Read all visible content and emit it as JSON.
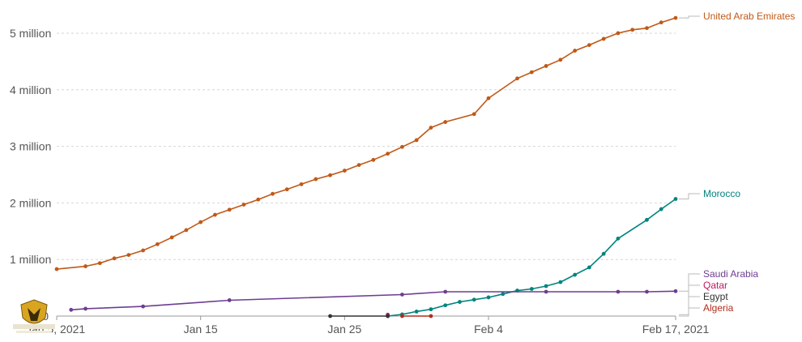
{
  "chart_data": {
    "type": "line",
    "x_axis": {
      "ticks": [
        {
          "date": "2021-01-05",
          "label": "Jan 5, 2021"
        },
        {
          "date": "2021-01-15",
          "label": "Jan 15"
        },
        {
          "date": "2021-01-25",
          "label": "Jan 25"
        },
        {
          "date": "2021-02-04",
          "label": "Feb 4"
        },
        {
          "date": "2021-02-17",
          "label": "Feb 17, 2021"
        }
      ],
      "range": [
        "2021-01-05",
        "2021-02-17"
      ]
    },
    "y_axis": {
      "ticks": [
        {
          "value": 0,
          "label": "0"
        },
        {
          "value": 1000000,
          "label": "1 million"
        },
        {
          "value": 2000000,
          "label": "2 million"
        },
        {
          "value": 3000000,
          "label": "3 million"
        },
        {
          "value": 4000000,
          "label": "4 million"
        },
        {
          "value": 5000000,
          "label": "5 million"
        }
      ],
      "range": [
        0,
        5300000
      ],
      "grid": "dashed"
    },
    "series": [
      {
        "name": "United Arab Emirates",
        "color": "#c05917",
        "points": [
          [
            "2021-01-05",
            830000
          ],
          [
            "2021-01-07",
            880000
          ],
          [
            "2021-01-08",
            935000
          ],
          [
            "2021-01-09",
            1020000
          ],
          [
            "2021-01-10",
            1080000
          ],
          [
            "2021-01-11",
            1160000
          ],
          [
            "2021-01-12",
            1270000
          ],
          [
            "2021-01-13",
            1390000
          ],
          [
            "2021-01-14",
            1520000
          ],
          [
            "2021-01-15",
            1660000
          ],
          [
            "2021-01-16",
            1790000
          ],
          [
            "2021-01-17",
            1880000
          ],
          [
            "2021-01-18",
            1970000
          ],
          [
            "2021-01-19",
            2060000
          ],
          [
            "2021-01-20",
            2160000
          ],
          [
            "2021-01-21",
            2240000
          ],
          [
            "2021-01-22",
            2330000
          ],
          [
            "2021-01-23",
            2420000
          ],
          [
            "2021-01-24",
            2490000
          ],
          [
            "2021-01-25",
            2570000
          ],
          [
            "2021-01-26",
            2670000
          ],
          [
            "2021-01-27",
            2760000
          ],
          [
            "2021-01-28",
            2870000
          ],
          [
            "2021-01-29",
            2990000
          ],
          [
            "2021-01-30",
            3110000
          ],
          [
            "2021-01-31",
            3330000
          ],
          [
            "2021-02-01",
            3430000
          ],
          [
            "2021-02-03",
            3570000
          ],
          [
            "2021-02-04",
            3850000
          ],
          [
            "2021-02-06",
            4200000
          ],
          [
            "2021-02-07",
            4310000
          ],
          [
            "2021-02-08",
            4420000
          ],
          [
            "2021-02-09",
            4530000
          ],
          [
            "2021-02-10",
            4690000
          ],
          [
            "2021-02-11",
            4790000
          ],
          [
            "2021-02-12",
            4900000
          ],
          [
            "2021-02-13",
            5000000
          ],
          [
            "2021-02-14",
            5060000
          ],
          [
            "2021-02-15",
            5090000
          ],
          [
            "2021-02-16",
            5190000
          ],
          [
            "2021-02-17",
            5270000
          ]
        ]
      },
      {
        "name": "Morocco",
        "color": "#00847e",
        "points": [
          [
            "2021-01-28",
            0
          ],
          [
            "2021-01-29",
            30000
          ],
          [
            "2021-01-30",
            80000
          ],
          [
            "2021-01-31",
            120000
          ],
          [
            "2021-02-01",
            190000
          ],
          [
            "2021-02-02",
            250000
          ],
          [
            "2021-02-03",
            290000
          ],
          [
            "2021-02-04",
            330000
          ],
          [
            "2021-02-05",
            390000
          ],
          [
            "2021-02-06",
            450000
          ],
          [
            "2021-02-07",
            480000
          ],
          [
            "2021-02-08",
            530000
          ],
          [
            "2021-02-09",
            600000
          ],
          [
            "2021-02-10",
            730000
          ],
          [
            "2021-02-11",
            860000
          ],
          [
            "2021-02-12",
            1100000
          ],
          [
            "2021-02-13",
            1370000
          ],
          [
            "2021-02-15",
            1700000
          ],
          [
            "2021-02-16",
            1890000
          ],
          [
            "2021-02-17",
            2070000
          ]
        ]
      },
      {
        "name": "Saudi Arabia",
        "color": "#6d3e91",
        "points": [
          [
            "2021-01-06",
            110000
          ],
          [
            "2021-01-07",
            130000
          ],
          [
            "2021-01-11",
            170000
          ],
          [
            "2021-01-17",
            280000
          ],
          [
            "2021-01-29",
            380000
          ],
          [
            "2021-02-01",
            430000
          ],
          [
            "2021-02-08",
            430000
          ],
          [
            "2021-02-13",
            430000
          ],
          [
            "2021-02-15",
            430000
          ],
          [
            "2021-02-17",
            440000
          ]
        ]
      },
      {
        "name": "Qatar",
        "color": "#c2185b",
        "points": [
          [
            "2021-01-28",
            25000
          ]
        ]
      },
      {
        "name": "Egypt",
        "color": "#333333",
        "points": [
          [
            "2021-01-24",
            0
          ],
          [
            "2021-01-28",
            0
          ]
        ]
      },
      {
        "name": "Algeria",
        "color": "#b22d1c",
        "points": [
          [
            "2021-01-29",
            0
          ],
          [
            "2021-01-31",
            0
          ]
        ]
      }
    ],
    "legend": "right-end labels"
  }
}
